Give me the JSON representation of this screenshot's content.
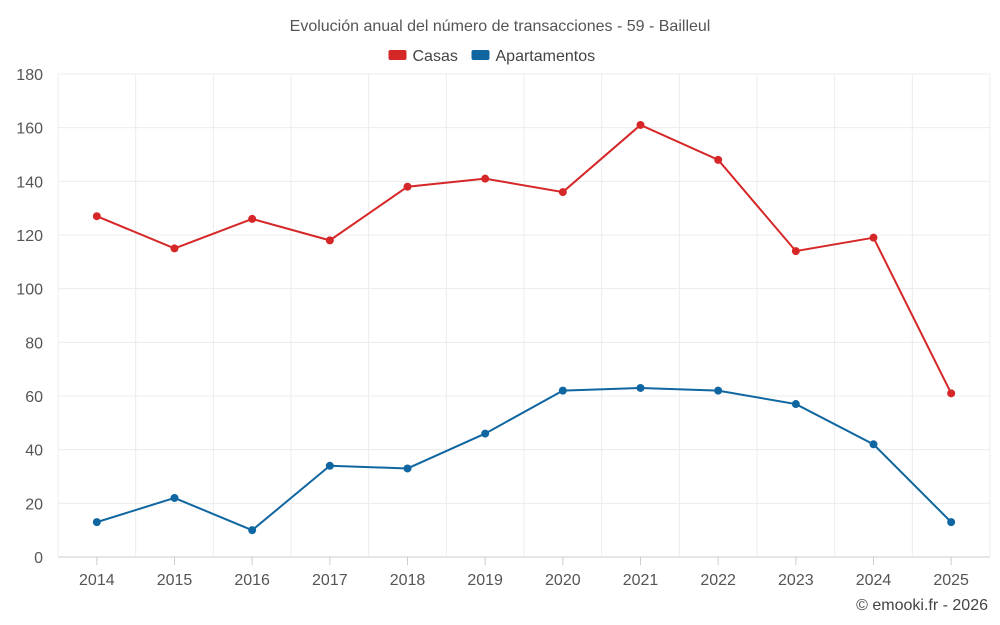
{
  "chart_data": {
    "type": "line",
    "title": "Evolución anual del número de transacciones - 59 - Bailleul",
    "categories": [
      "2014",
      "2015",
      "2016",
      "2017",
      "2018",
      "2019",
      "2020",
      "2021",
      "2022",
      "2023",
      "2024",
      "2025"
    ],
    "series": [
      {
        "name": "Casas",
        "color": "#d62728",
        "values": [
          127,
          115,
          126,
          118,
          138,
          141,
          136,
          161,
          148,
          114,
          119,
          61
        ]
      },
      {
        "name": "Apartamentos",
        "color": "#1066a0",
        "values": [
          13,
          22,
          10,
          34,
          33,
          46,
          62,
          63,
          62,
          57,
          42,
          13
        ]
      }
    ],
    "ylim": [
      0,
      180
    ],
    "yticks": [
      0,
      20,
      40,
      60,
      80,
      100,
      120,
      140,
      160,
      180
    ],
    "grid": true,
    "legend_position": "top-center",
    "xlabel": "",
    "ylabel": ""
  },
  "credit": "© emooki.fr - 2026"
}
